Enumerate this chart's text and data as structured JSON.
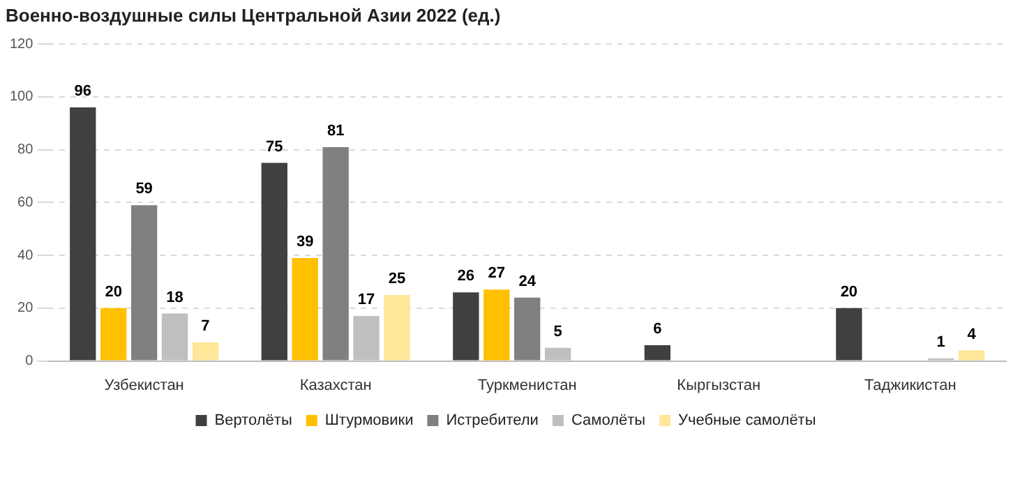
{
  "chart_data": {
    "type": "bar",
    "title": "Военно-воздушные силы Центральной Азии 2022 (ед.)",
    "categories": [
      "Узбекистан",
      "Казахстан",
      "Туркменистан",
      "Кыргызстан",
      "Таджикистан"
    ],
    "series": [
      {
        "name": "Вертолёты",
        "color": "#404040",
        "values": [
          96,
          75,
          26,
          6,
          20
        ]
      },
      {
        "name": "Штурмовики",
        "color": "#ffc000",
        "values": [
          20,
          39,
          27,
          null,
          null
        ]
      },
      {
        "name": "Истребители",
        "color": "#808080",
        "values": [
          59,
          81,
          24,
          null,
          null
        ]
      },
      {
        "name": "Самолёты",
        "color": "#bfbfbf",
        "values": [
          18,
          17,
          5,
          null,
          1
        ]
      },
      {
        "name": "Учебные самолёты",
        "color": "#ffe699",
        "values": [
          7,
          25,
          null,
          null,
          4
        ]
      }
    ],
    "ylim": [
      0,
      120
    ],
    "yticks": [
      0,
      20,
      40,
      60,
      80,
      100,
      120
    ],
    "grid": "y",
    "legend": "bottom",
    "data_labels": true
  }
}
